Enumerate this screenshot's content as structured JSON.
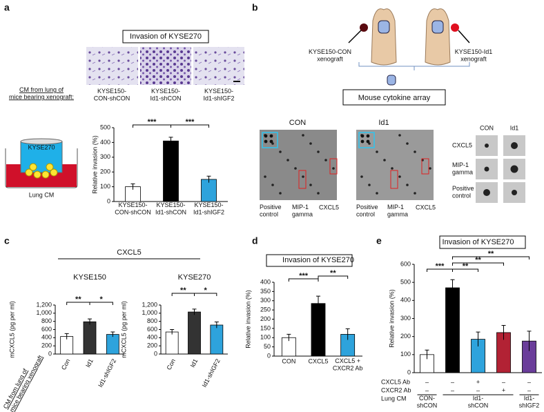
{
  "panels": [
    "a",
    "b",
    "c",
    "d",
    "e"
  ],
  "panel_a": {
    "title": "Invasion of KYSE270",
    "image_labels": [
      "KYSE150-\nCON-shCON",
      "KYSE150-\nId1-shCON",
      "KYSE150-\nId1-shIGF2"
    ],
    "cm_label": "CM from lung of\nmice bearing xenograft:",
    "cell_line": "KYSE270",
    "medium": "Lung CM"
  },
  "panel_b": {
    "xenografts": [
      "KYSE150-CON\nxenograft",
      "KYSE150-Id1\nxenograft"
    ],
    "assay": "Mouse cytokine array",
    "arrays": [
      "CON",
      "Id1"
    ],
    "spot_labels": [
      "Positive\ncontrol",
      "MIP-1\ngamma",
      "CXCL5"
    ],
    "inset_columns": [
      "CON",
      "Id1"
    ],
    "inset_rows": [
      "CXCL5",
      "MIP-1\ngamma",
      "Positive\ncontrol"
    ]
  },
  "panel_c": {
    "title": "CXCL5",
    "cm_label": "CM from lung of\nmice bearing xenograft"
  },
  "chart_data": [
    {
      "type": "bar",
      "ylabel": "Relative invasion (%)",
      "categories": [
        "KYSE150-\nCON-shCON",
        "KYSE150-\nId1-shCON",
        "KYSE150-\nId1-shIGF2"
      ],
      "values": [
        100,
        410,
        150
      ],
      "errors": [
        20,
        25,
        22
      ],
      "colors": [
        "#ffffff",
        "#000000",
        "#2ea3dc"
      ],
      "ylim": [
        0,
        500
      ],
      "yticks": [
        0,
        100,
        200,
        300,
        400,
        500
      ],
      "significance": [
        "***",
        "***"
      ]
    },
    {
      "type": "bar",
      "title": "KYSE150",
      "ylabel": "mCXCL5 (pg per ml)",
      "categories": [
        "Con",
        "Id1",
        "Id1-shIGF2"
      ],
      "values": [
        430,
        790,
        480
      ],
      "errors": [
        70,
        70,
        60
      ],
      "colors": [
        "#ffffff",
        "#333333",
        "#2ea3dc"
      ],
      "ylim": [
        0,
        1200
      ],
      "yticks": [
        0,
        200,
        400,
        600,
        800,
        {
          "value": 1000,
          "label": "1,000"
        },
        {
          "value": 1200,
          "label": "1,200"
        }
      ],
      "significance": [
        "**",
        "*"
      ]
    },
    {
      "type": "bar",
      "title": "KYSE270",
      "ylabel": "mCXCL5 (pg per ml)",
      "categories": [
        "Con",
        "Id1",
        "Id1-shIGF2"
      ],
      "values": [
        540,
        1030,
        710
      ],
      "errors": [
        60,
        70,
        75
      ],
      "colors": [
        "#ffffff",
        "#333333",
        "#2ea3dc"
      ],
      "ylim": [
        0,
        1200
      ],
      "yticks": [
        0,
        200,
        400,
        600,
        800,
        {
          "value": 1000,
          "label": "1,000"
        },
        {
          "value": 1200,
          "label": "1,200"
        }
      ],
      "significance": [
        "**",
        "*"
      ]
    },
    {
      "type": "bar",
      "title": "Invasion of KYSE270",
      "ylabel": "Relative invasion (%)",
      "categories": [
        "CON",
        "CXCL5",
        "CXCL5 +\nCXCR2 Ab"
      ],
      "values": [
        100,
        285,
        118
      ],
      "errors": [
        18,
        40,
        30
      ],
      "colors": [
        "#ffffff",
        "#000000",
        "#2ea3dc"
      ],
      "ylim": [
        0,
        400
      ],
      "yticks": [
        0,
        50,
        100,
        150,
        200,
        250,
        300,
        350,
        400
      ],
      "significance": [
        "***",
        "**"
      ]
    },
    {
      "type": "bar",
      "title": "Invasion of KYSE270",
      "ylabel": "Relative invasion (%)",
      "values": [
        100,
        470,
        185,
        222,
        175
      ],
      "errors": [
        25,
        45,
        40,
        40,
        55
      ],
      "colors": [
        "#ffffff",
        "#000000",
        "#2ea3dc",
        "#b22234",
        "#6a3d9a"
      ],
      "ylim": [
        0,
        600
      ],
      "yticks": [
        0,
        100,
        200,
        300,
        400,
        500,
        600
      ],
      "significance": [
        "***",
        "**",
        "**",
        "**"
      ],
      "conditions": [
        {
          "label": "CXCL5 Ab",
          "marks": [
            "–",
            "–",
            "+",
            "–",
            "–"
          ]
        },
        {
          "label": "CXCR2 Ab",
          "marks": [
            "–",
            "–",
            "–",
            "+",
            "–"
          ]
        }
      ],
      "lung_cm": {
        "label": "Lung CM",
        "groups": [
          "CON-\nshCON",
          "Id1-\nshCON",
          "Id1-\nshIGF2"
        ]
      }
    }
  ]
}
